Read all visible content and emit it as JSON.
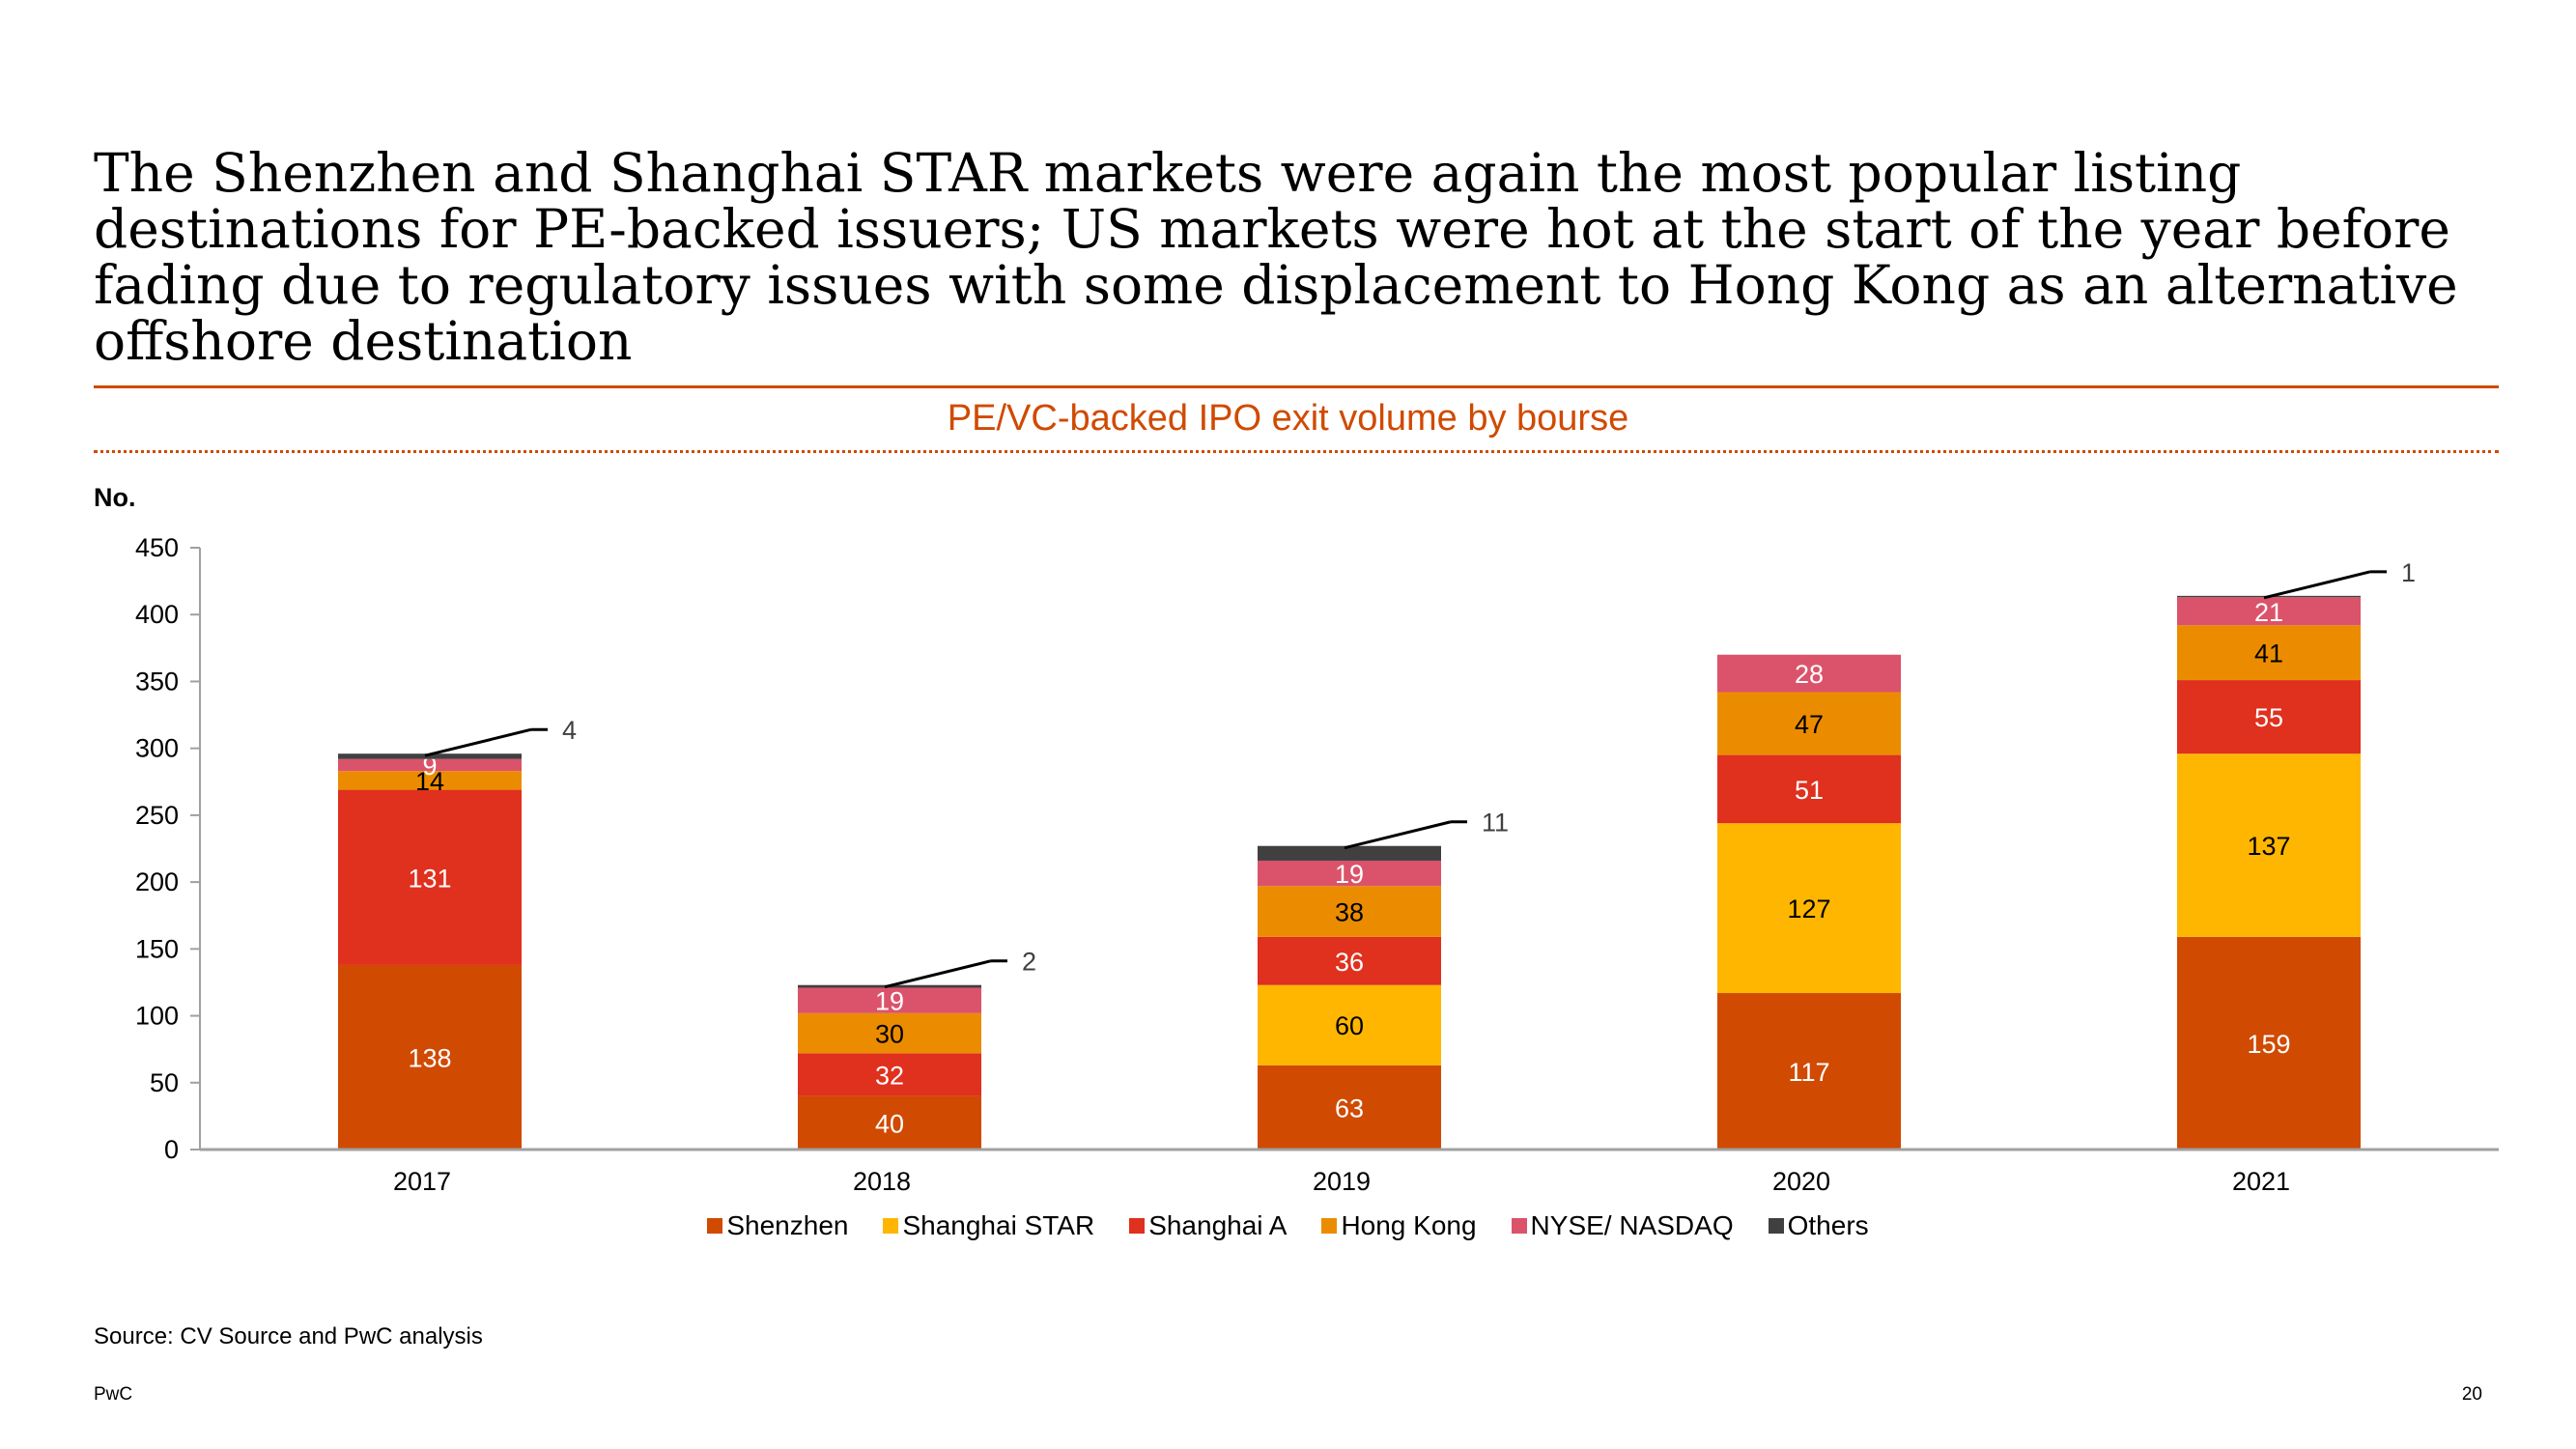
{
  "headline": "The Shenzhen and Shanghai STAR markets were again the most popular listing destinations for PE-backed issuers; US markets were hot at the start of the year before fading due to regulatory issues with some displacement to Hong Kong as an alternative offshore destination",
  "footer": {
    "source": "Source: CV Source and PwC analysis",
    "brand": "PwC",
    "page": "20"
  },
  "chart_data": {
    "type": "bar",
    "stacked": true,
    "title": "PE/VC-backed IPO exit volume by bourse",
    "ylabel": "No.",
    "xlabel": "",
    "ylim": [
      0,
      450
    ],
    "yticks": [
      0,
      50,
      100,
      150,
      200,
      250,
      300,
      350,
      400,
      450
    ],
    "categories": [
      "2017",
      "2018",
      "2019",
      "2020",
      "2021"
    ],
    "series": [
      {
        "name": "Shenzhen",
        "color": "#D04A02",
        "label_color": "#FFFFFF",
        "values": [
          138,
          40,
          63,
          117,
          159
        ]
      },
      {
        "name": "Shanghai STAR",
        "color": "#FFB600",
        "label_color": "#000000",
        "values": [
          0,
          0,
          60,
          127,
          137
        ]
      },
      {
        "name": "Shanghai A",
        "color": "#E0301E",
        "label_color": "#FFFFFF",
        "values": [
          131,
          32,
          36,
          51,
          55
        ]
      },
      {
        "name": "Hong Kong",
        "color": "#EB8C00",
        "label_color": "#000000",
        "values": [
          14,
          30,
          38,
          47,
          41
        ]
      },
      {
        "name": "NYSE/ NASDAQ",
        "color": "#DB536A",
        "label_color": "#FFFFFF",
        "values": [
          9,
          19,
          19,
          28,
          21
        ]
      },
      {
        "name": "Others",
        "color": "#404041",
        "label_color": "#000000",
        "values": [
          4,
          2,
          11,
          0,
          1
        ]
      }
    ],
    "callout_series": "Others",
    "legend_position": "bottom"
  }
}
